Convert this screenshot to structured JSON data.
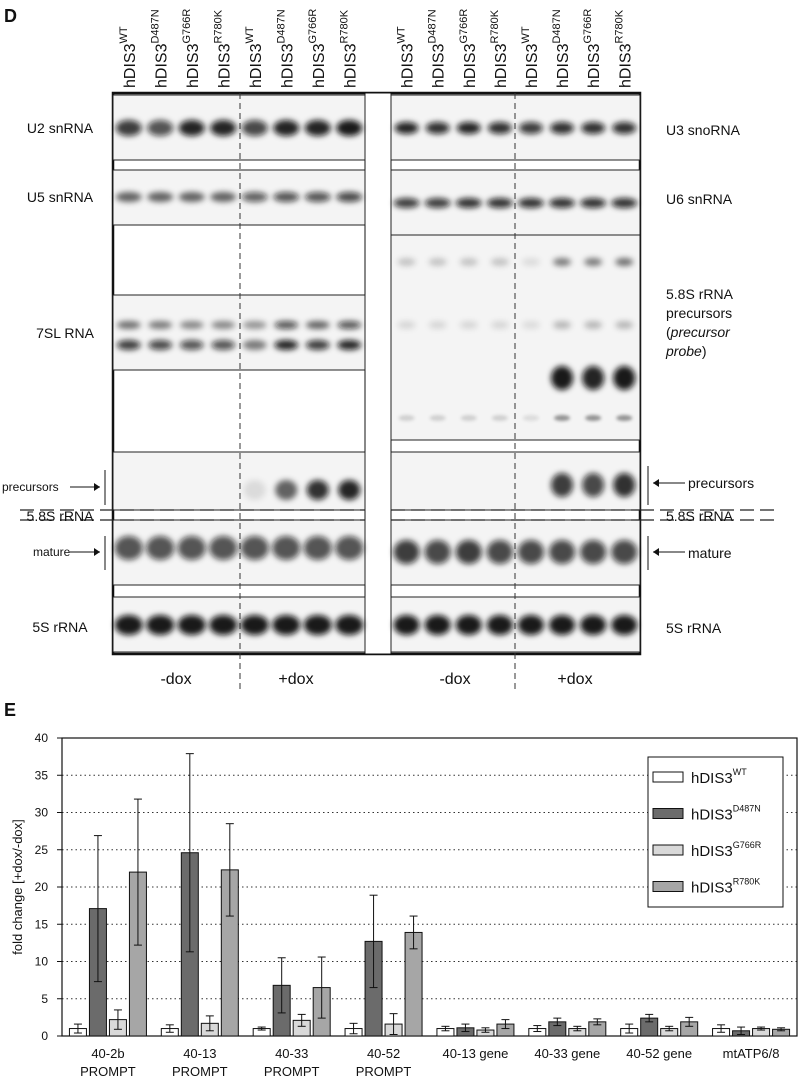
{
  "panel_d": {
    "label": "D",
    "lane_gene": "hDIS3",
    "variants": [
      "WT",
      "D487N",
      "G766R",
      "R780K"
    ],
    "left_labels": [
      "U2 snRNA",
      "U5 snRNA",
      "7SL RNA",
      "precursors",
      "5.8S rRNA",
      "mature",
      "5S rRNA"
    ],
    "right_labels": [
      "U3 snoRNA",
      "U6 snRNA",
      "precursors",
      "5.8S rRNA",
      "mature",
      "5S rRNA"
    ],
    "right_probe": {
      "lines": [
        "5.8S rRNA",
        "precursors"
      ],
      "open": "(",
      "italic": [
        "precursor",
        "probe"
      ],
      "close": ")"
    },
    "conditions": [
      "-dox",
      "+dox"
    ]
  },
  "chart_data": {
    "type": "bar",
    "panel_label": "E",
    "y_label": "fold change [+dox/-dox]",
    "categories": [
      [
        "40-2b",
        "PROMPT"
      ],
      [
        "40-13",
        "PROMPT"
      ],
      [
        "40-33",
        "PROMPT"
      ],
      [
        "40-52",
        "PROMPT"
      ],
      [
        "40-13 gene"
      ],
      [
        "40-33 gene"
      ],
      [
        "40-52 gene"
      ],
      [
        "mtATP6/8"
      ]
    ],
    "series": [
      {
        "name": "hDIS3",
        "name_sup": "WT",
        "color": "#ffffff",
        "values": [
          1.0,
          1.0,
          1.0,
          1.0,
          1.0,
          1.0,
          1.0,
          1.0
        ],
        "errors": [
          0.6,
          0.5,
          0.2,
          0.7,
          0.3,
          0.4,
          0.6,
          0.5
        ]
      },
      {
        "name": "hDIS3",
        "name_sup": "D487N",
        "color": "#6b6b6b",
        "values": [
          17.1,
          24.6,
          6.8,
          12.7,
          1.1,
          1.9,
          2.4,
          0.7
        ],
        "errors": [
          9.8,
          13.3,
          3.7,
          6.2,
          0.5,
          0.5,
          0.5,
          0.5
        ]
      },
      {
        "name": "hDIS3",
        "name_sup": "G766R",
        "color": "#d9d9d9",
        "values": [
          2.2,
          1.7,
          2.1,
          1.6,
          0.8,
          1.0,
          1.0,
          1.0
        ],
        "errors": [
          1.3,
          1.0,
          0.8,
          1.4,
          0.3,
          0.3,
          0.3,
          0.2
        ]
      },
      {
        "name": "hDIS3",
        "name_sup": "R780K",
        "color": "#a6a6a6",
        "values": [
          22.0,
          22.3,
          6.5,
          13.9,
          1.6,
          1.9,
          1.9,
          0.9
        ],
        "errors": [
          9.8,
          6.2,
          4.1,
          2.2,
          0.6,
          0.4,
          0.6,
          0.2
        ]
      }
    ],
    "ylim": [
      0,
      40
    ],
    "yticks": [
      0,
      5,
      10,
      15,
      20,
      25,
      30,
      35,
      40
    ],
    "grid": true,
    "legend": "upper right"
  }
}
